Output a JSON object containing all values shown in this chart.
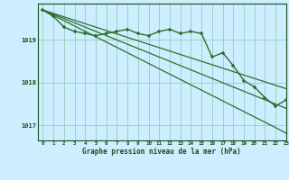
{
  "title": "Graphe pression niveau de la mer (hPa)",
  "background_color": "#cceeff",
  "plot_bg_color": "#cceeff",
  "grid_color": "#99ccbb",
  "line_color": "#2d6e2d",
  "text_color": "#1a4d1a",
  "ylabel_ticks": [
    1017,
    1018,
    1019
  ],
  "xlim": [
    -0.5,
    23
  ],
  "ylim": [
    1016.65,
    1019.85
  ],
  "x_labels": [
    "0",
    "1",
    "2",
    "3",
    "4",
    "5",
    "6",
    "7",
    "8",
    "9",
    "10",
    "11",
    "12",
    "13",
    "14",
    "15",
    "16",
    "17",
    "18",
    "19",
    "20",
    "21",
    "22",
    "23"
  ],
  "main_series": [
    1019.7,
    1019.55,
    1019.3,
    1019.2,
    1019.15,
    1019.1,
    1019.15,
    1019.2,
    1019.25,
    1019.15,
    1019.1,
    1019.2,
    1019.25,
    1019.15,
    1019.2,
    1019.15,
    1018.6,
    1018.7,
    1018.4,
    1018.05,
    1017.9,
    1017.65,
    1017.45,
    1017.6
  ],
  "smooth_line1": [
    1019.7,
    1019.62,
    1019.54,
    1019.46,
    1019.38,
    1019.3,
    1019.22,
    1019.14,
    1019.06,
    1018.98,
    1018.9,
    1018.82,
    1018.74,
    1018.66,
    1018.58,
    1018.5,
    1018.42,
    1018.34,
    1018.26,
    1018.18,
    1018.1,
    1018.02,
    1017.94,
    1017.86
  ],
  "smooth_line2": [
    1019.7,
    1019.6,
    1019.5,
    1019.4,
    1019.3,
    1019.2,
    1019.1,
    1019.0,
    1018.9,
    1018.8,
    1018.7,
    1018.6,
    1018.5,
    1018.4,
    1018.3,
    1018.2,
    1018.1,
    1018.0,
    1017.9,
    1017.8,
    1017.7,
    1017.6,
    1017.5,
    1017.4
  ],
  "smooth_line3": [
    1019.7,
    1019.575,
    1019.45,
    1019.325,
    1019.2,
    1019.075,
    1018.95,
    1018.825,
    1018.7,
    1018.575,
    1018.45,
    1018.325,
    1018.2,
    1018.075,
    1017.95,
    1017.825,
    1017.7,
    1017.575,
    1017.45,
    1017.325,
    1017.2,
    1017.075,
    1016.95,
    1016.82
  ]
}
